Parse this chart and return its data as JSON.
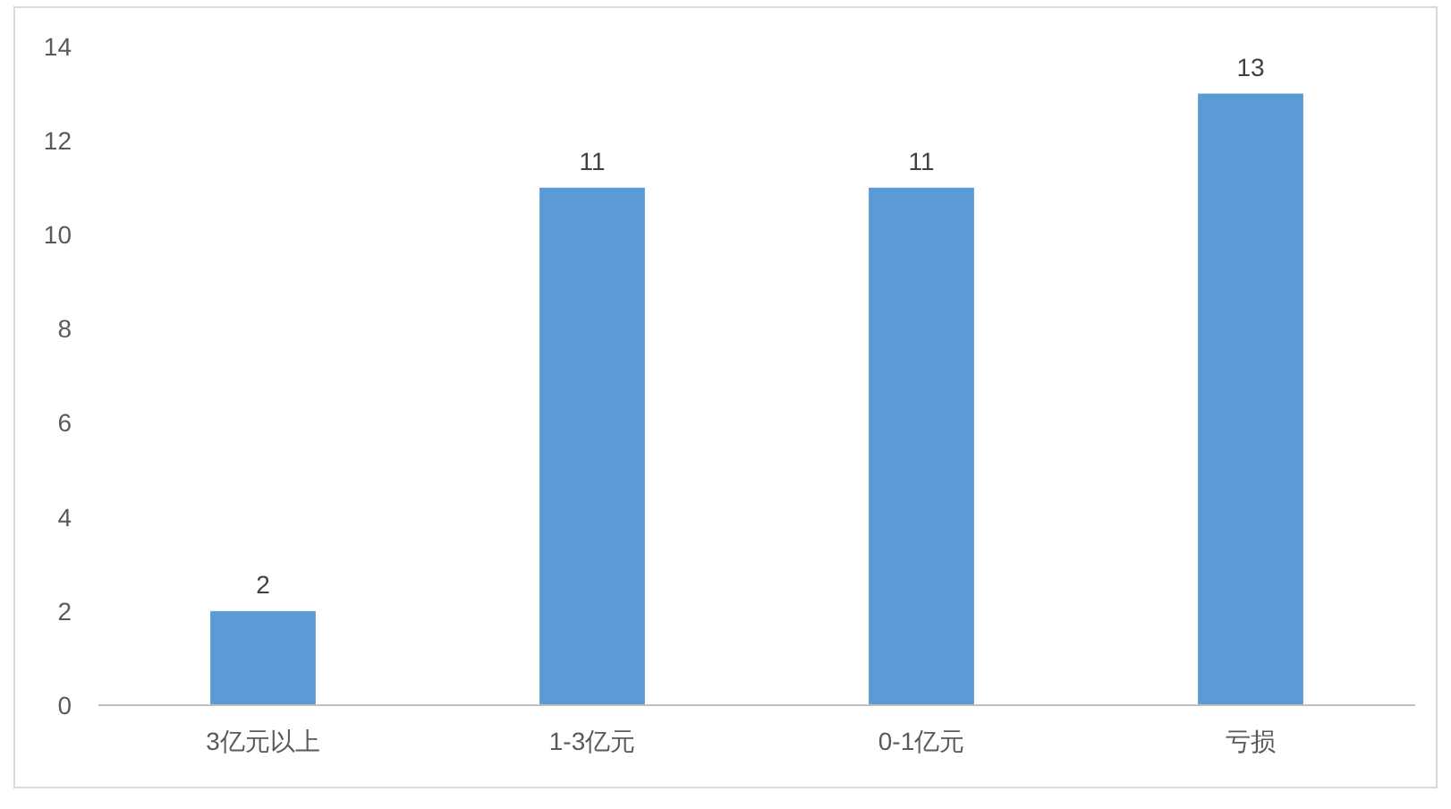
{
  "chart_data": {
    "type": "bar",
    "categories": [
      "3亿元以上",
      "1-3亿元",
      "0-1亿元",
      "亏损"
    ],
    "values": [
      2,
      11,
      11,
      13
    ],
    "color": "#5b9bd5",
    "ylim": [
      0,
      14
    ],
    "yticks": [
      0,
      2,
      4,
      6,
      8,
      10,
      12,
      14
    ],
    "grid": false,
    "data_labels": true
  }
}
